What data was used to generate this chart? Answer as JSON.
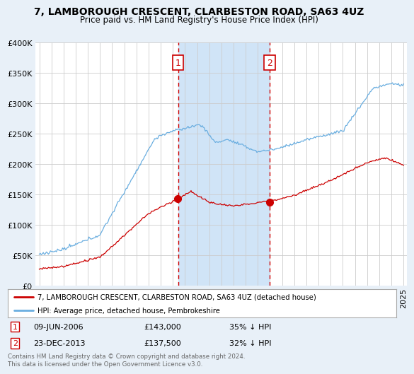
{
  "title": "7, LAMBOROUGH CRESCENT, CLARBESTON ROAD, SA63 4UZ",
  "subtitle": "Price paid vs. HM Land Registry's House Price Index (HPI)",
  "background_color": "#e8f0f8",
  "plot_bg_color": "#ffffff",
  "shading_color": "#d0e4f7",
  "hpi_color": "#6aaee0",
  "price_color": "#cc0000",
  "vline_color": "#cc0000",
  "marker1_date": "09-JUN-2006",
  "marker1_price": "£143,000",
  "marker1_pct": "35% ↓ HPI",
  "marker2_date": "23-DEC-2013",
  "marker2_price": "£137,500",
  "marker2_pct": "32% ↓ HPI",
  "legend_label1": "7, LAMBOROUGH CRESCENT, CLARBESTON ROAD, SA63 4UZ (detached house)",
  "legend_label2": "HPI: Average price, detached house, Pembrokeshire",
  "footer": "Contains HM Land Registry data © Crown copyright and database right 2024.\nThis data is licensed under the Open Government Licence v3.0.",
  "vline1_x": 2006.44,
  "vline2_x": 2013.98,
  "marker1_price_val": 143000,
  "marker2_price_val": 137500,
  "ylim": [
    0,
    400000
  ],
  "yticks": [
    0,
    50000,
    100000,
    150000,
    200000,
    250000,
    300000,
    350000,
    400000
  ],
  "xmin": 1994.7,
  "xmax": 2025.3
}
